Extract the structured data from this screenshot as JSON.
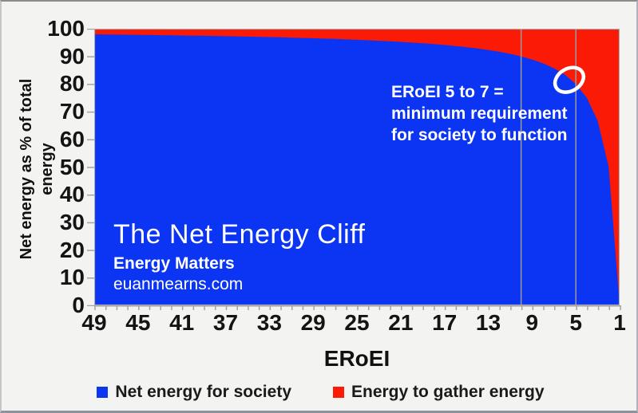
{
  "chart_data": {
    "type": "area",
    "title": "The Net Energy Cliff",
    "subtitle": "Energy Matters",
    "credit": "euanmearns.com",
    "xlabel": "ERoEI",
    "ylabel": "Net energy as % of total energy",
    "x_axis_reversed": true,
    "xlim": [
      49,
      1
    ],
    "ylim": [
      0,
      100
    ],
    "x_tick_labels": [
      49,
      45,
      41,
      37,
      33,
      29,
      25,
      21,
      17,
      13,
      9,
      5,
      1
    ],
    "y_tick_labels": [
      100,
      90,
      80,
      70,
      60,
      50,
      40,
      30,
      20,
      10,
      0
    ],
    "x": [
      49,
      48,
      47,
      46,
      45,
      44,
      43,
      42,
      41,
      40,
      39,
      38,
      37,
      36,
      35,
      34,
      33,
      32,
      31,
      30,
      29,
      28,
      27,
      26,
      25,
      24,
      23,
      22,
      21,
      20,
      19,
      18,
      17,
      16,
      15,
      14,
      13,
      12,
      11,
      10,
      9,
      8,
      7,
      6,
      5,
      4,
      3,
      2,
      1
    ],
    "series": [
      {
        "name": "Net energy for society",
        "color": "#0b35f2",
        "values": [
          97.96,
          97.92,
          97.87,
          97.83,
          97.78,
          97.73,
          97.67,
          97.62,
          97.56,
          97.5,
          97.44,
          97.37,
          97.3,
          97.22,
          97.14,
          97.06,
          96.97,
          96.88,
          96.77,
          96.67,
          96.55,
          96.43,
          96.3,
          96.15,
          96.0,
          95.83,
          95.65,
          95.45,
          95.24,
          95.0,
          94.74,
          94.44,
          94.12,
          93.75,
          93.33,
          92.86,
          92.31,
          91.67,
          90.91,
          90.0,
          88.89,
          87.5,
          85.71,
          83.33,
          80.0,
          75.0,
          66.67,
          50.0,
          0.0
        ]
      },
      {
        "name": "Energy to gather energy",
        "color": "#fb1a05",
        "values": [
          2.04,
          2.08,
          2.13,
          2.17,
          2.22,
          2.27,
          2.33,
          2.38,
          2.44,
          2.5,
          2.56,
          2.63,
          2.7,
          2.78,
          2.86,
          2.94,
          3.03,
          3.13,
          3.23,
          3.33,
          3.45,
          3.57,
          3.7,
          3.85,
          4.0,
          4.17,
          4.35,
          4.55,
          4.76,
          5.0,
          5.26,
          5.56,
          5.88,
          6.25,
          6.67,
          7.14,
          7.69,
          8.33,
          9.09,
          10.0,
          11.11,
          12.5,
          14.29,
          16.67,
          20.0,
          25.0,
          33.33,
          50.0,
          100.0
        ]
      }
    ],
    "reference_lines_x": [
      10,
      5
    ],
    "reference_line_color": "#9b9b9b",
    "annotation": {
      "lines": [
        "ERoEI 5 to 7 =",
        "minimum requirement",
        "for society to function"
      ]
    },
    "highlight_circle": {
      "eroei": 5.6,
      "net_pct": 81.5,
      "color": "#ffffff"
    },
    "legend_position": "bottom",
    "grid": "off",
    "axis_color": "#a3a3a3",
    "plot_border_color": "#adadad"
  }
}
